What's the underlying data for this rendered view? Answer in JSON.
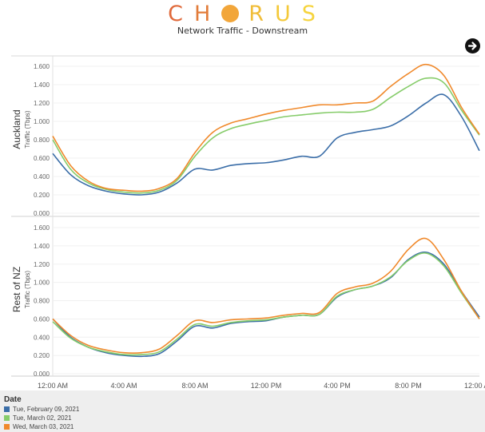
{
  "header": {
    "logo_letters": [
      {
        "char": "C",
        "color": "#e06a3b"
      },
      {
        "char": "H",
        "color": "#e27c3a"
      },
      {
        "char": "O",
        "color": "#f2a63a",
        "circle": true
      },
      {
        "char": "R",
        "color": "#f0bd38"
      },
      {
        "char": "U",
        "color": "#f4c93a"
      },
      {
        "char": "S",
        "color": "#f6d43e"
      }
    ],
    "subtitle": "Network Traffic - Downstream",
    "next_icon": "arrow-right-circle-icon"
  },
  "legend": {
    "title": "Date",
    "items": [
      {
        "label": "Tue, February 09, 2021",
        "color": "#3b6ea8"
      },
      {
        "label": "Tue, March 02, 2021",
        "color": "#86cc6a"
      },
      {
        "label": "Wed, March 03, 2021",
        "color": "#f0892b"
      }
    ]
  },
  "chart_data": [
    {
      "type": "line",
      "title": "",
      "panel_label": "Auckland",
      "ylabel": "Traffic (Tbps)",
      "ylim": [
        0,
        1.7
      ],
      "yticks": [
        "0.000",
        "0.200",
        "0.400",
        "0.600",
        "0.800",
        "1.000",
        "1.200",
        "1.400",
        "1.600"
      ],
      "grid": true,
      "x": [
        0,
        1,
        2,
        3,
        4,
        5,
        6,
        7,
        8,
        9,
        10,
        11,
        12,
        13,
        14,
        15,
        16,
        17,
        18,
        19,
        20,
        21,
        22,
        23,
        24
      ],
      "series": [
        {
          "name": "Tue, February 09, 2021",
          "color": "#3b6ea8",
          "values": [
            0.65,
            0.42,
            0.3,
            0.24,
            0.21,
            0.2,
            0.23,
            0.33,
            0.48,
            0.47,
            0.52,
            0.54,
            0.55,
            0.58,
            0.62,
            0.62,
            0.82,
            0.88,
            0.91,
            0.95,
            1.06,
            1.2,
            1.29,
            1.05,
            0.68
          ]
        },
        {
          "name": "Tue, March 02, 2021",
          "color": "#86cc6a",
          "values": [
            0.8,
            0.48,
            0.33,
            0.26,
            0.23,
            0.22,
            0.25,
            0.36,
            0.62,
            0.82,
            0.92,
            0.97,
            1.01,
            1.05,
            1.07,
            1.09,
            1.1,
            1.1,
            1.13,
            1.26,
            1.38,
            1.47,
            1.42,
            1.12,
            0.85
          ]
        },
        {
          "name": "Wed, March 03, 2021",
          "color": "#f0892b",
          "values": [
            0.84,
            0.52,
            0.35,
            0.27,
            0.25,
            0.24,
            0.27,
            0.38,
            0.66,
            0.88,
            0.98,
            1.03,
            1.08,
            1.12,
            1.15,
            1.18,
            1.18,
            1.2,
            1.22,
            1.38,
            1.52,
            1.62,
            1.5,
            1.15,
            0.86
          ]
        }
      ]
    },
    {
      "type": "line",
      "title": "",
      "panel_label": "Rest of NZ",
      "ylabel": "Traffic (Tbps)",
      "ylim": [
        0,
        1.7
      ],
      "yticks": [
        "0.000",
        "0.200",
        "0.400",
        "0.600",
        "0.800",
        "1.000",
        "1.200",
        "1.400",
        "1.600"
      ],
      "grid": true,
      "xticks": [
        {
          "x": 0,
          "label": "12:00 AM"
        },
        {
          "x": 4,
          "label": "4:00 AM"
        },
        {
          "x": 8,
          "label": "8:00 AM"
        },
        {
          "x": 12,
          "label": "12:00 PM"
        },
        {
          "x": 16,
          "label": "4:00 PM"
        },
        {
          "x": 20,
          "label": "8:00 PM"
        },
        {
          "x": 24,
          "label": "12:00 AM"
        }
      ],
      "x": [
        0,
        1,
        2,
        3,
        4,
        5,
        6,
        7,
        8,
        9,
        10,
        11,
        12,
        13,
        14,
        15,
        16,
        17,
        18,
        19,
        20,
        21,
        22,
        23,
        24
      ],
      "series": [
        {
          "name": "Tue, February 09, 2021",
          "color": "#3b6ea8",
          "values": [
            0.6,
            0.4,
            0.29,
            0.23,
            0.2,
            0.19,
            0.22,
            0.36,
            0.52,
            0.5,
            0.55,
            0.57,
            0.58,
            0.62,
            0.64,
            0.65,
            0.84,
            0.92,
            0.96,
            1.05,
            1.25,
            1.33,
            1.2,
            0.9,
            0.62
          ]
        },
        {
          "name": "Tue, March 02, 2021",
          "color": "#86cc6a",
          "values": [
            0.57,
            0.39,
            0.29,
            0.24,
            0.21,
            0.21,
            0.24,
            0.38,
            0.54,
            0.52,
            0.56,
            0.58,
            0.59,
            0.62,
            0.64,
            0.65,
            0.85,
            0.92,
            0.96,
            1.06,
            1.24,
            1.32,
            1.18,
            0.88,
            0.6
          ]
        },
        {
          "name": "Wed, March 03, 2021",
          "color": "#f0892b",
          "values": [
            0.6,
            0.42,
            0.31,
            0.26,
            0.23,
            0.23,
            0.27,
            0.42,
            0.58,
            0.56,
            0.59,
            0.6,
            0.61,
            0.64,
            0.66,
            0.67,
            0.88,
            0.95,
            0.99,
            1.12,
            1.36,
            1.48,
            1.25,
            0.9,
            0.6
          ]
        }
      ]
    }
  ]
}
